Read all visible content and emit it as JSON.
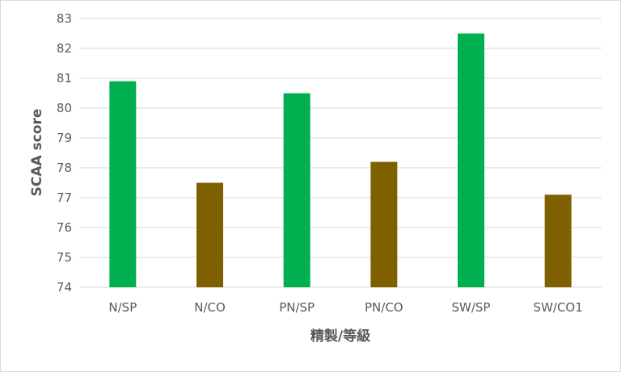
{
  "chart_data": {
    "type": "bar",
    "title": "",
    "xlabel": "精製/等級",
    "ylabel": "SCAA score",
    "ylim": [
      74,
      83
    ],
    "yticks": [
      74,
      75,
      76,
      77,
      78,
      79,
      80,
      81,
      82,
      83
    ],
    "grid": true,
    "legend": "none",
    "categories": [
      "N/SP",
      "N/CO",
      "PN/SP",
      "PN/CO",
      "SW/SP",
      "SW/CO1"
    ],
    "values": [
      80.9,
      77.5,
      80.5,
      78.2,
      82.5,
      77.1
    ],
    "bar_colors": [
      "#00b050",
      "#7f6000",
      "#00b050",
      "#7f6000",
      "#00b050",
      "#7f6000"
    ],
    "gridline_color": "#d9d9d9",
    "text_color": "#595959"
  }
}
